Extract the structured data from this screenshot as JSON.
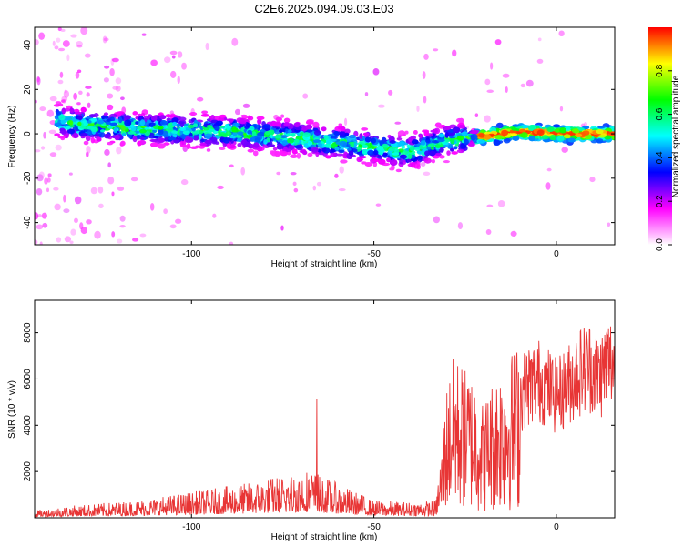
{
  "title": "C2E6.2025.094.09.03.E03",
  "chart_data": [
    {
      "type": "heatmap",
      "xlabel": "Height of straight line (km)",
      "ylabel": "Frequency (Hz)",
      "xlim": [
        -143,
        16
      ],
      "ylim": [
        -50,
        48
      ],
      "xticks": [
        -100,
        -50,
        0
      ],
      "yticks": [
        -40,
        -20,
        0,
        20,
        40
      ],
      "colorbar": {
        "label": "Normalized spectral amplitude",
        "range": [
          0,
          1
        ],
        "ticks": [
          "0.0",
          "0.2",
          "0.4",
          "0.6",
          "0.8"
        ],
        "tick_values": [
          0,
          0.2,
          0.4,
          0.6,
          0.8
        ],
        "colors": [
          "#ffffff",
          "#ff00ff",
          "#0000ff",
          "#00ffff",
          "#00ff00",
          "#ffff00",
          "#ff0000"
        ]
      },
      "trend": {
        "x": [
          -143,
          -130,
          -110,
          -90,
          -70,
          -50,
          -40,
          -30,
          -20,
          -10,
          0,
          16
        ],
        "y": [
          8,
          4,
          2,
          1,
          -2,
          -6,
          -8,
          -3,
          -1,
          1,
          0,
          0
        ]
      }
    },
    {
      "type": "line",
      "xlabel": "Height of straight line (km)",
      "ylabel": "SNR (10 * v/v)",
      "xlim": [
        -143,
        16
      ],
      "ylim": [
        0,
        9400
      ],
      "xticks": [
        -100,
        -50,
        0
      ],
      "yticks": [
        2000,
        4000,
        6000,
        8000
      ],
      "line_color": "#e83535",
      "envelope": {
        "x": [
          -143,
          -135,
          -125,
          -115,
          -105,
          -95,
          -85,
          -75,
          -68,
          -60,
          -50,
          -40,
          -33,
          -30,
          -28,
          -25,
          -22,
          -20,
          -18,
          -15,
          -12,
          -10,
          -8,
          -5,
          -2,
          0,
          3,
          6,
          9,
          12,
          14,
          16
        ],
        "y": [
          250,
          400,
          500,
          600,
          800,
          1000,
          1200,
          1500,
          1700,
          1200,
          600,
          550,
          600,
          4500,
          5500,
          5000,
          4800,
          3800,
          4500,
          5200,
          5600,
          6000,
          6500,
          6800,
          6400,
          6000,
          6500,
          7200,
          7500,
          7000,
          7700,
          7600
        ]
      }
    }
  ]
}
